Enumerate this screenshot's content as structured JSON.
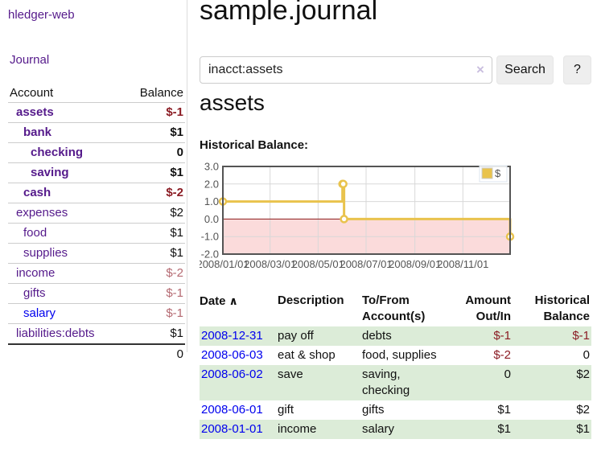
{
  "app": {
    "title": "hledger-web"
  },
  "sidebar": {
    "journal_label": "Journal",
    "accounts": {
      "header_account": "Account",
      "header_balance": "Balance",
      "rows": [
        {
          "account": "assets",
          "balance": "$-1",
          "depth": 1,
          "bold": true,
          "link_color": "purple",
          "balance_tone": "neg-strong"
        },
        {
          "account": "bank",
          "balance": "$1",
          "depth": 2,
          "bold": true,
          "link_color": "purple",
          "balance_tone": "normal"
        },
        {
          "account": "checking",
          "balance": "0",
          "depth": 3,
          "bold": true,
          "link_color": "purple",
          "balance_tone": "normal"
        },
        {
          "account": "saving",
          "balance": "$1",
          "depth": 3,
          "bold": true,
          "link_color": "purple",
          "balance_tone": "normal"
        },
        {
          "account": "cash",
          "balance": "$-2",
          "depth": 2,
          "bold": true,
          "link_color": "purple",
          "balance_tone": "neg-strong"
        },
        {
          "account": "expenses",
          "balance": "$2",
          "depth": 1,
          "bold": false,
          "link_color": "purple",
          "balance_tone": "normal"
        },
        {
          "account": "food",
          "balance": "$1",
          "depth": 2,
          "bold": false,
          "link_color": "purple",
          "balance_tone": "normal"
        },
        {
          "account": "supplies",
          "balance": "$1",
          "depth": 2,
          "bold": false,
          "link_color": "purple",
          "balance_tone": "normal"
        },
        {
          "account": "income",
          "balance": "$-2",
          "depth": 1,
          "bold": false,
          "link_color": "purple",
          "balance_tone": "neg-soft"
        },
        {
          "account": "gifts",
          "balance": "$-1",
          "depth": 2,
          "bold": false,
          "link_color": "purple",
          "balance_tone": "neg-soft"
        },
        {
          "account": "salary",
          "balance": "$-1",
          "depth": 2,
          "bold": false,
          "link_color": "blue",
          "balance_tone": "neg-soft"
        },
        {
          "account": "liabilities:debts",
          "balance": "$1",
          "depth": 1,
          "bold": false,
          "link_color": "purple",
          "balance_tone": "normal"
        }
      ],
      "total": "0"
    }
  },
  "main": {
    "title": "sample.journal",
    "search": {
      "value": "inacct:assets",
      "clear_icon": "×",
      "button_label": "Search",
      "help_label": "?"
    },
    "account_heading": "assets",
    "chart_title": "Historical Balance:"
  },
  "chart_data": {
    "type": "line",
    "line_style": "step-after",
    "title": "Historical Balance:",
    "x": [
      "2008-01-01",
      "2008-06-01",
      "2008-06-02",
      "2008-06-03",
      "2008-12-31"
    ],
    "series": [
      {
        "name": "$",
        "values": [
          1,
          2,
          2,
          0,
          -1
        ]
      }
    ],
    "xlim": [
      "2008-01-01",
      "2008-12-31"
    ],
    "ylim": [
      -2,
      3
    ],
    "ytick_labels": [
      "3.0",
      "2.0",
      "1.0",
      "0.0",
      "-1.0",
      "-2.0"
    ],
    "ytick_values": [
      3,
      2,
      1,
      0,
      -1,
      -2
    ],
    "xtick_labels": [
      "2008/01/01",
      "2008/03/01",
      "2008/05/01",
      "2008/07/01",
      "2008/09/01",
      "2008/11/01"
    ],
    "grid": true,
    "legend_position": "top-right",
    "legend": [
      {
        "label": "$",
        "color": "#e9c34d"
      }
    ],
    "shaded_negative_region": true
  },
  "register": {
    "headers": [
      "Date",
      "Description",
      "To/From Account(s)",
      "Amount Out/In",
      "Historical Balance"
    ],
    "sort_icon": "∧",
    "rows": [
      {
        "date": "2008-12-31",
        "description": "pay off",
        "accounts": "debts",
        "amount": "$-1",
        "balance": "$-1",
        "amount_negative": true,
        "balance_negative": true
      },
      {
        "date": "2008-06-03",
        "description": "eat & shop",
        "accounts": "food, supplies",
        "amount": "$-2",
        "balance": "0",
        "amount_negative": true,
        "balance_negative": false
      },
      {
        "date": "2008-06-02",
        "description": "save",
        "accounts": "saving, checking",
        "amount": "0",
        "balance": "$2",
        "amount_negative": false,
        "balance_negative": false
      },
      {
        "date": "2008-06-01",
        "description": "gift",
        "accounts": "gifts",
        "amount": "$1",
        "balance": "$2",
        "amount_negative": false,
        "balance_negative": false
      },
      {
        "date": "2008-01-01",
        "description": "income",
        "accounts": "salary",
        "amount": "$1",
        "balance": "$1",
        "amount_negative": false,
        "balance_negative": false
      }
    ]
  },
  "colors": {
    "link_visited": "#551a8b",
    "link_unvisited": "#0000ee",
    "negative_strong": "#8b1c24",
    "negative_soft": "#b56a72",
    "row_band_green": "#dcecd8",
    "series_yellow": "#e9c34d",
    "negative_region_fill": "#fbdbdb",
    "zero_line": "#8b1a1a",
    "chart_border": "#545454",
    "grid_line": "#d8d8d8",
    "tick_text": "#545454"
  }
}
